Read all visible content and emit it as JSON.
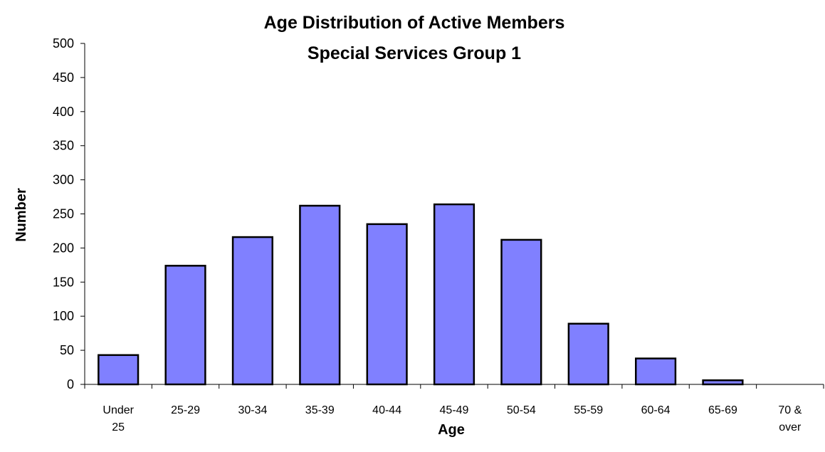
{
  "chart_data": {
    "type": "bar",
    "title": "Age Distribution of Active Members",
    "subtitle": "Special Services Group 1",
    "xlabel": "Age",
    "ylabel": "Number",
    "categories": [
      [
        "Under",
        "25"
      ],
      [
        "25-29"
      ],
      [
        "30-34"
      ],
      [
        "35-39"
      ],
      [
        "40-44"
      ],
      [
        "45-49"
      ],
      [
        "50-54"
      ],
      [
        "55-59"
      ],
      [
        "60-64"
      ],
      [
        "65-69"
      ],
      [
        "70 &",
        "over"
      ]
    ],
    "values": [
      43,
      174,
      216,
      262,
      235,
      264,
      212,
      89,
      38,
      6,
      0
    ],
    "ylim": [
      0,
      500
    ],
    "yticks": [
      "0",
      "50",
      "100",
      "150",
      "200",
      "250",
      "300",
      "350",
      "400",
      "450",
      "500"
    ],
    "grid": false,
    "legend": "none",
    "bar_color": "#8080ff",
    "bar_outline": "#000000"
  }
}
